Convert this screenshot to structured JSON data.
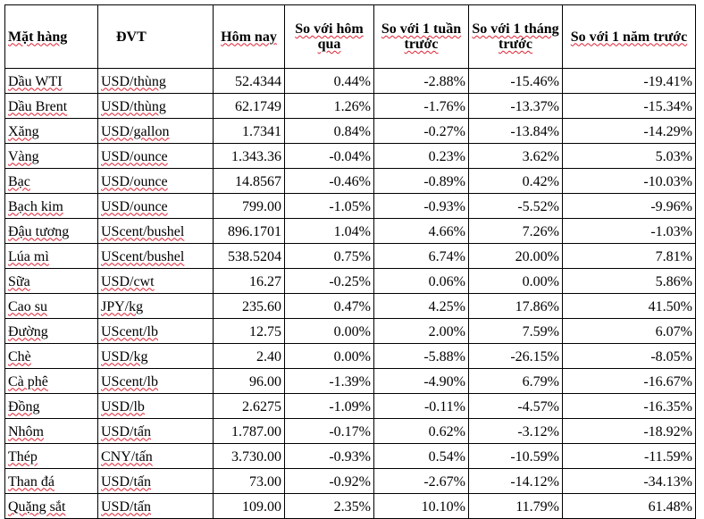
{
  "headers": [
    "Mặt hàng",
    "ĐVT",
    "Hôm nay",
    "So với hôm qua",
    "So với 1 tuần trước",
    "So với 1 tháng trước",
    "So với 1 năm trước"
  ],
  "rows": [
    [
      "Dầu WTI",
      "USD/thùng",
      "52.4344",
      "0.44%",
      "-2.88%",
      "-15.46%",
      "-19.41%"
    ],
    [
      "Dầu Brent",
      "USD/thùng",
      "62.1749",
      "1.26%",
      "-1.76%",
      "-13.37%",
      "-15.34%"
    ],
    [
      "Xăng",
      "USD/gallon",
      "1.7341",
      "0.84%",
      "-0.27%",
      "-13.84%",
      "-14.29%"
    ],
    [
      "Vàng",
      "USD/ounce",
      "1.343.36",
      "-0.04%",
      "0.23%",
      "3.62%",
      "5.03%"
    ],
    [
      "Bạc",
      "USD/ounce",
      "14.8567",
      "-0.46%",
      "-0.89%",
      "0.42%",
      "-10.03%"
    ],
    [
      "Bạch kim",
      "USD/ounce",
      "799.00",
      "-1.05%",
      "-0.93%",
      "-5.52%",
      "-9.96%"
    ],
    [
      "Đậu tương",
      "UScent/bushel",
      "896.1701",
      "1.04%",
      "4.66%",
      "7.26%",
      "-1.03%"
    ],
    [
      "Lúa mì",
      "UScent/bushel",
      "538.5204",
      "0.75%",
      "6.74%",
      "20.00%",
      "7.81%"
    ],
    [
      "Sữa",
      "USD/cwt",
      "16.27",
      "-0.25%",
      "0.06%",
      "0.00%",
      "5.86%"
    ],
    [
      "Cao su",
      "JPY/kg",
      "235.60",
      "0.47%",
      "4.25%",
      "17.86%",
      "41.50%"
    ],
    [
      "Đường",
      "UScent/lb",
      "12.75",
      "0.00%",
      "2.00%",
      "7.59%",
      "6.07%"
    ],
    [
      "Chè",
      "USD/kg",
      "2.40",
      "0.00%",
      "-5.88%",
      "-26.15%",
      "-8.05%"
    ],
    [
      "Cà phê",
      "UScent/lb",
      "96.00",
      "-1.39%",
      "-4.90%",
      "6.79%",
      "-16.67%"
    ],
    [
      "Đồng",
      "USD/lb",
      "2.6275",
      "-1.09%",
      "-0.11%",
      "-4.57%",
      "-16.35%"
    ],
    [
      "Nhôm",
      "USD/tấn",
      "1.787.00",
      "-0.17%",
      "0.62%",
      "-3.12%",
      "-18.92%"
    ],
    [
      "Thép",
      "CNY/tấn",
      "3.730.00",
      "-0.93%",
      "0.54%",
      "-10.59%",
      "-11.59%"
    ],
    [
      "Than đá",
      "USD/tấn",
      "73.00",
      "-0.92%",
      "-2.67%",
      "-14.12%",
      "-34.13%"
    ],
    [
      "Quặng sắt",
      "USD/tấn",
      "109.00",
      "2.35%",
      "10.10%",
      "11.79%",
      "61.48%"
    ]
  ]
}
